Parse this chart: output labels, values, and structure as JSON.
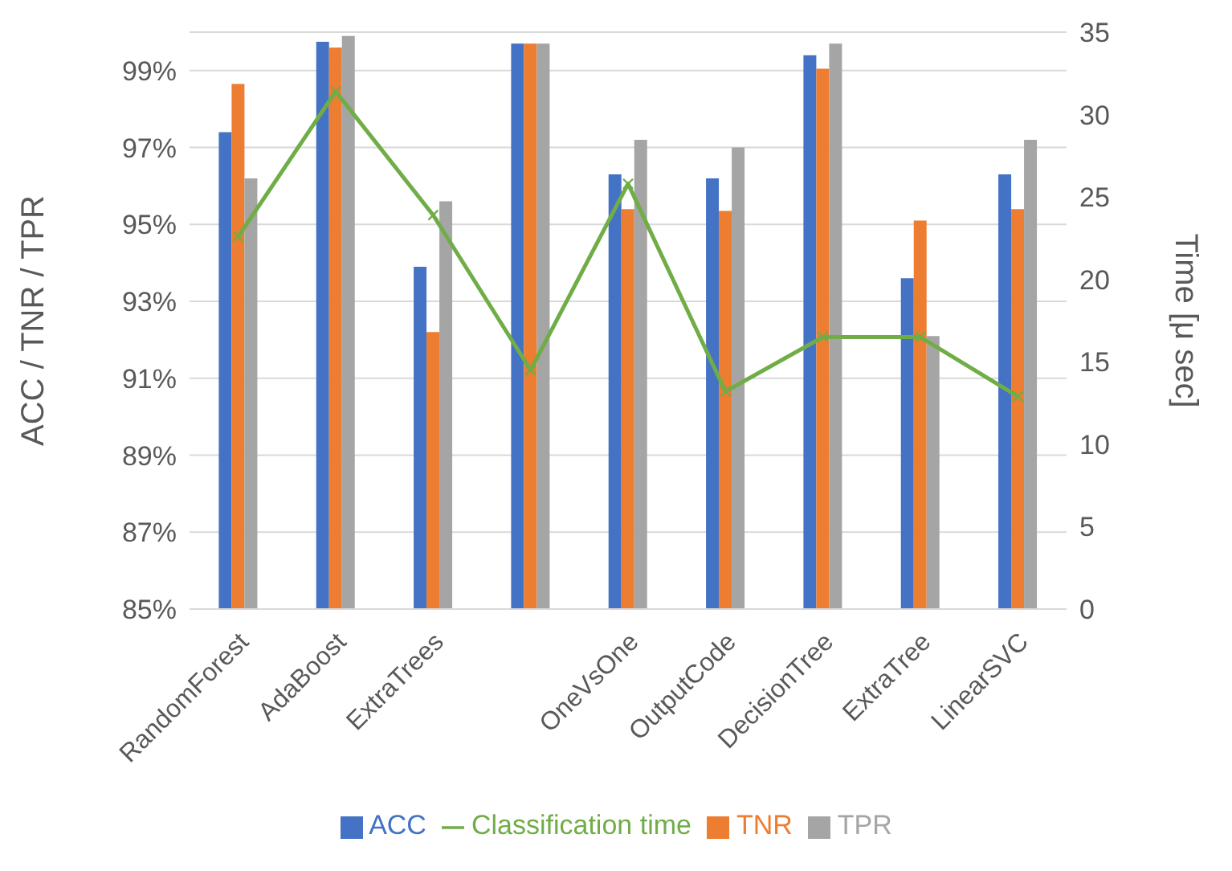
{
  "chart_data": {
    "type": "bar",
    "categories": [
      "RandomForest",
      "AdaBoost",
      "ExtraTrees",
      null,
      "OneVsOne",
      "OutputCode",
      "DecisionTree",
      "ExtraTree",
      "LinearSVC"
    ],
    "ylabel": "ACC / TNR / TPR",
    "y2label": "Time [μ sec]",
    "ylim": [
      85,
      100
    ],
    "yticks": [
      {
        "value": 85,
        "label": "85%"
      },
      {
        "value": 87,
        "label": "87%"
      },
      {
        "value": 89,
        "label": "89%"
      },
      {
        "value": 91,
        "label": "91%"
      },
      {
        "value": 93,
        "label": "93%"
      },
      {
        "value": 95,
        "label": "95%"
      },
      {
        "value": 97,
        "label": "97%"
      },
      {
        "value": 99,
        "label": "99%"
      }
    ],
    "y2lim": [
      0,
      35
    ],
    "y2ticks": [
      0,
      5,
      10,
      15,
      20,
      25,
      30,
      35
    ],
    "grid": "y",
    "legend": "bottom",
    "series": [
      {
        "name": "ACC",
        "color": "#4472c4",
        "values": [
          97.4,
          99.75,
          93.9,
          99.7,
          96.3,
          96.2,
          99.4,
          93.6,
          96.3
        ]
      },
      {
        "name": "TNR",
        "color": "#ed7d31",
        "values": [
          98.65,
          99.6,
          92.2,
          99.7,
          95.4,
          95.35,
          99.05,
          95.1,
          95.4
        ]
      },
      {
        "name": "TPR",
        "color": "#a5a5a5",
        "values": [
          96.2,
          99.9,
          95.6,
          99.7,
          97.2,
          97.0,
          99.7,
          92.1,
          97.2
        ]
      },
      {
        "name": "Classification time",
        "type": "line",
        "axis": "y2",
        "color": "#70ad47",
        "marker": "cross",
        "values": [
          22.6,
          31.4,
          23.9,
          14.5,
          25.8,
          13.2,
          16.5,
          16.5,
          12.9
        ]
      }
    ]
  }
}
